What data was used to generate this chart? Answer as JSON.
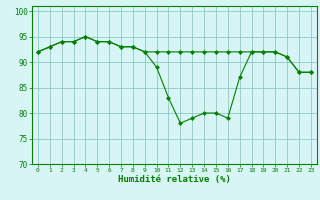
{
  "line1_x": [
    0,
    1,
    2,
    3,
    4,
    5,
    6,
    7,
    8,
    9,
    10,
    11,
    12,
    13,
    14,
    15,
    16,
    17,
    18,
    19,
    20,
    21,
    22,
    23
  ],
  "line1_y": [
    92,
    93,
    94,
    94,
    95,
    94,
    94,
    93,
    93,
    92,
    89,
    83,
    78,
    79,
    80,
    80,
    79,
    87,
    92,
    92,
    92,
    91,
    88,
    88
  ],
  "line2_x": [
    0,
    1,
    2,
    3,
    4,
    5,
    6,
    7,
    8,
    9,
    10,
    11,
    12,
    13,
    14,
    15,
    16,
    17,
    18,
    19,
    20,
    21,
    22,
    23
  ],
  "line2_y": [
    92,
    93,
    94,
    94,
    95,
    94,
    94,
    93,
    93,
    92,
    92,
    92,
    92,
    92,
    92,
    92,
    92,
    92,
    92,
    92,
    92,
    91,
    88,
    88
  ],
  "line_color": "#008000",
  "bg_color": "#d8f5f5",
  "grid_color": "#7fbfbf",
  "xlabel": "Humidité relative (%)",
  "ylim": [
    70,
    101
  ],
  "xlim": [
    -0.5,
    23.5
  ],
  "yticks": [
    70,
    75,
    80,
    85,
    90,
    95,
    100
  ],
  "xticks": [
    0,
    1,
    2,
    3,
    4,
    5,
    6,
    7,
    8,
    9,
    10,
    11,
    12,
    13,
    14,
    15,
    16,
    17,
    18,
    19,
    20,
    21,
    22,
    23
  ]
}
